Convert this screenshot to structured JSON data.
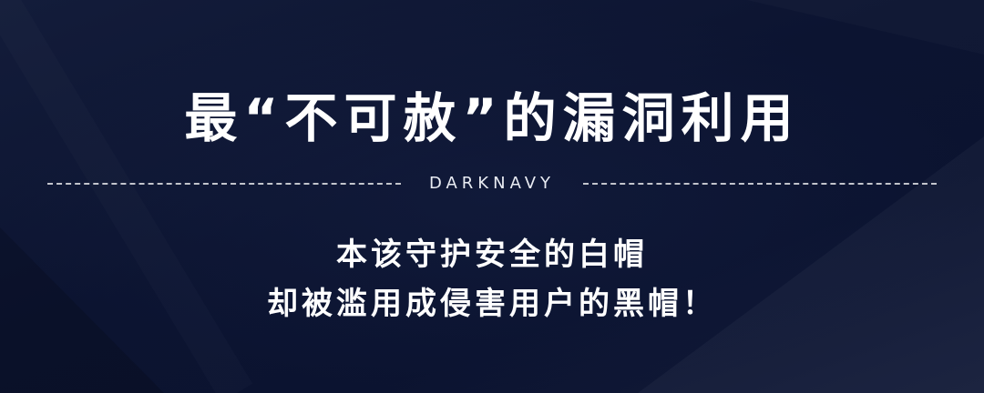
{
  "banner": {
    "title": "最“不可赦”的漏洞利用",
    "brand": "DARKNAVY",
    "subtitle_line1": "本该守护安全的白帽",
    "subtitle_line2": "却被滥用成侵害用户的黑帽！",
    "colors": {
      "background": "#0e1733",
      "text": "#ffffff",
      "divider": "#c7ccd9"
    }
  }
}
